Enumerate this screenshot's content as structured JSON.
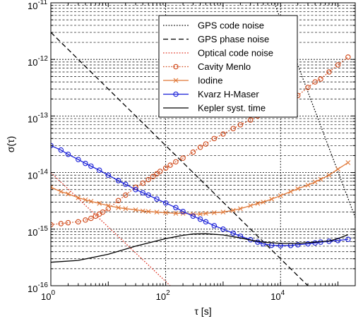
{
  "chart_data": {
    "type": "line",
    "xscale": "log",
    "yscale": "log",
    "xlim": [
      1,
      200000
    ],
    "ylim": [
      1e-16,
      1e-11
    ],
    "grid": true,
    "legend_position": "top-right",
    "xlabel": "τ [s]",
    "ylabel": "σ(τ)",
    "x_ticks": [
      {
        "value": 1,
        "base": "10",
        "exp": "0"
      },
      {
        "value": 100,
        "base": "10",
        "exp": "2"
      },
      {
        "value": 10000,
        "base": "10",
        "exp": "4"
      }
    ],
    "y_ticks": [
      {
        "value": 1e-11,
        "base": "10",
        "exp": "-11"
      },
      {
        "value": 1e-12,
        "base": "10",
        "exp": "-12"
      },
      {
        "value": 1e-13,
        "base": "10",
        "exp": "-13"
      },
      {
        "value": 1e-14,
        "base": "10",
        "exp": "-14"
      },
      {
        "value": 1e-15,
        "base": "10",
        "exp": "-15"
      },
      {
        "value": 1e-16,
        "base": "10",
        "exp": "-16"
      }
    ],
    "series": [
      {
        "name": "GPS code noise",
        "color": "#000000",
        "line": "dotted",
        "marker": "none",
        "points": [
          [
            7300,
            1.2e-11
          ],
          [
            200000,
            1.6e-15
          ]
        ]
      },
      {
        "name": "GPS phase noise",
        "color": "#000000",
        "line": "dashed",
        "marker": "none",
        "points": [
          [
            1,
            3e-12
          ],
          [
            30000,
            1e-16
          ]
        ]
      },
      {
        "name": "Optical code noise",
        "color": "#e03020",
        "line": "dotted",
        "marker": "none",
        "points": [
          [
            1,
            1e-14
          ],
          [
            120,
            1e-16
          ]
        ]
      },
      {
        "name": "Cavity Menlo",
        "color": "#d04818",
        "line": "dotted",
        "marker": "circle",
        "points": [
          [
            1,
            1.2e-15
          ],
          [
            1.5,
            1.25e-15
          ],
          [
            2,
            1.3e-15
          ],
          [
            3,
            1.35e-15
          ],
          [
            4,
            1.45e-15
          ],
          [
            5,
            1.55e-15
          ],
          [
            6,
            1.7e-15
          ],
          [
            7,
            1.85e-15
          ],
          [
            8,
            2e-15
          ],
          [
            10,
            2.3e-15
          ],
          [
            15,
            3.2e-15
          ],
          [
            20,
            4e-15
          ],
          [
            30,
            5.5e-15
          ],
          [
            40,
            6.5e-15
          ],
          [
            50,
            7.5e-15
          ],
          [
            60,
            8.5e-15
          ],
          [
            70,
            9.5e-15
          ],
          [
            80,
            1.05e-14
          ],
          [
            100,
            1.2e-14
          ],
          [
            120,
            1.35e-14
          ],
          [
            150,
            1.55e-14
          ],
          [
            200,
            1.8e-14
          ],
          [
            300,
            2.3e-14
          ],
          [
            400,
            2.8e-14
          ],
          [
            500,
            3.2e-14
          ],
          [
            700,
            4e-14
          ],
          [
            1000,
            4.8e-14
          ],
          [
            1500,
            6e-14
          ],
          [
            2000,
            7e-14
          ],
          [
            3000,
            8.5e-14
          ],
          [
            4000,
            1e-13
          ],
          [
            5000,
            1.1e-13
          ],
          [
            6000,
            1.2e-13
          ],
          [
            7000,
            1.3e-13
          ],
          [
            8000,
            1.4e-13
          ],
          [
            10000,
            1.5e-13
          ],
          [
            12000,
            1.7e-13
          ],
          [
            15000,
            1.9e-13
          ],
          [
            20000,
            2.3e-13
          ],
          [
            30000,
            3.2e-13
          ],
          [
            40000,
            4e-13
          ],
          [
            50000,
            4.5e-13
          ],
          [
            70000,
            6e-13
          ],
          [
            100000,
            8e-13
          ],
          [
            150000,
            1.1e-12
          ]
        ]
      },
      {
        "name": "Iodine",
        "color": "#e07838",
        "line": "solid",
        "marker": "x",
        "points": [
          [
            1,
            5.5e-15
          ],
          [
            1.5,
            4.6e-15
          ],
          [
            2,
            4.2e-15
          ],
          [
            3,
            3.6e-15
          ],
          [
            4,
            3.3e-15
          ],
          [
            5,
            3.1e-15
          ],
          [
            7,
            2.85e-15
          ],
          [
            10,
            2.6e-15
          ],
          [
            15,
            2.4e-15
          ],
          [
            20,
            2.3e-15
          ],
          [
            30,
            2.2e-15
          ],
          [
            40,
            2.1e-15
          ],
          [
            50,
            2.05e-15
          ],
          [
            70,
            2e-15
          ],
          [
            100,
            1.95e-15
          ],
          [
            150,
            1.9e-15
          ],
          [
            200,
            1.9e-15
          ],
          [
            300,
            1.85e-15
          ],
          [
            400,
            1.85e-15
          ],
          [
            500,
            1.9e-15
          ],
          [
            700,
            1.95e-15
          ],
          [
            1000,
            2e-15
          ],
          [
            1500,
            2.15e-15
          ],
          [
            2000,
            2.3e-15
          ],
          [
            3000,
            2.6e-15
          ],
          [
            4000,
            2.85e-15
          ],
          [
            5000,
            3e-15
          ],
          [
            7000,
            3.4e-15
          ],
          [
            10000,
            3.9e-15
          ],
          [
            15000,
            4.6e-15
          ],
          [
            20000,
            5.2e-15
          ],
          [
            30000,
            6e-15
          ],
          [
            40000,
            6.8e-15
          ],
          [
            50000,
            7.6e-15
          ],
          [
            70000,
            9e-15
          ],
          [
            100000,
            1.15e-14
          ],
          [
            150000,
            1.5e-14
          ]
        ]
      },
      {
        "name": "Kvarz H-Maser",
        "color": "#1a20d8",
        "line": "solid",
        "marker": "circle",
        "points": [
          [
            1,
            3e-14
          ],
          [
            1.5,
            2.5e-14
          ],
          [
            2,
            2.1e-14
          ],
          [
            3,
            1.7e-14
          ],
          [
            4,
            1.45e-14
          ],
          [
            5,
            1.3e-14
          ],
          [
            7,
            1.1e-14
          ],
          [
            10,
            9e-15
          ],
          [
            15,
            7.2e-15
          ],
          [
            20,
            6.2e-15
          ],
          [
            30,
            5e-15
          ],
          [
            40,
            4.4e-15
          ],
          [
            50,
            4e-15
          ],
          [
            70,
            3.4e-15
          ],
          [
            100,
            2.9e-15
          ],
          [
            150,
            2.4e-15
          ],
          [
            200,
            2.05e-15
          ],
          [
            300,
            1.7e-15
          ],
          [
            400,
            1.5e-15
          ],
          [
            500,
            1.35e-15
          ],
          [
            700,
            1.15e-15
          ],
          [
            1000,
            1e-15
          ],
          [
            1500,
            8.5e-16
          ],
          [
            2000,
            7.5e-16
          ],
          [
            3000,
            6.5e-16
          ],
          [
            4000,
            5.9e-16
          ],
          [
            5000,
            5.5e-16
          ],
          [
            7000,
            5.2e-16
          ],
          [
            10000,
            5.1e-16
          ],
          [
            15000,
            5.15e-16
          ],
          [
            20000,
            5.3e-16
          ],
          [
            30000,
            5.5e-16
          ],
          [
            40000,
            5.7e-16
          ],
          [
            50000,
            5.9e-16
          ],
          [
            70000,
            6.1e-16
          ],
          [
            100000,
            6.3e-16
          ],
          [
            150000,
            6.6e-16
          ]
        ]
      },
      {
        "name": "Kepler syst. time",
        "color": "#000000",
        "line": "solid",
        "marker": "none",
        "points": [
          [
            1,
            2.6e-16
          ],
          [
            3,
            2.8e-16
          ],
          [
            10,
            3.6e-16
          ],
          [
            30,
            5e-16
          ],
          [
            100,
            6.8e-16
          ],
          [
            200,
            7.8e-16
          ],
          [
            300,
            8.2e-16
          ],
          [
            500,
            8.3e-16
          ],
          [
            1000,
            7.9e-16
          ],
          [
            2000,
            7e-16
          ],
          [
            3000,
            6.4e-16
          ],
          [
            5000,
            5.9e-16
          ],
          [
            10000,
            5.6e-16
          ],
          [
            20000,
            5.6e-16
          ],
          [
            40000,
            5.9e-16
          ],
          [
            70000,
            6.2e-16
          ],
          [
            100000,
            6.8e-16
          ],
          [
            150000,
            8e-16
          ]
        ]
      }
    ]
  }
}
